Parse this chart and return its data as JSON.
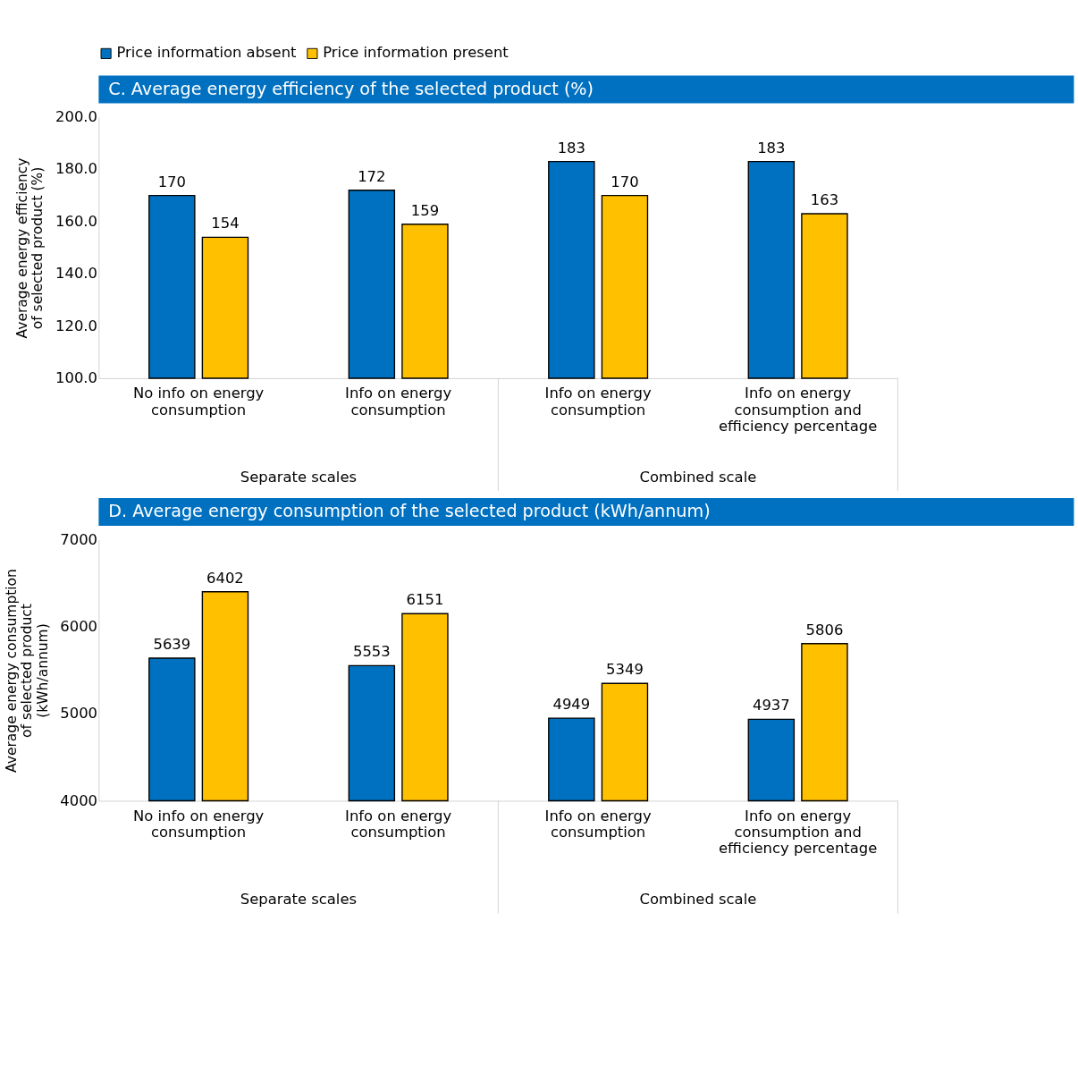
{
  "chart_data": [
    {
      "type": "bar",
      "title": "C. Average energy efficiency of the selected product (%)",
      "ylabel": "Average energy efficiency of selected product (%)",
      "categories": [
        "No info on energy consumption",
        "Info on energy consumption",
        "Info on energy consumption",
        "Info on energy consumption and efficiency percentage"
      ],
      "series": [
        {
          "name": "Price information absent",
          "color": "#0070c0",
          "values": [
            170,
            172,
            183,
            183
          ]
        },
        {
          "name": "Price information present",
          "color": "#ffc000",
          "values": [
            154,
            159,
            170,
            163
          ]
        }
      ],
      "ylim": [
        100,
        200
      ],
      "yticks": [
        {
          "value": 100,
          "label": "100.0"
        },
        {
          "value": 120,
          "label": "120.0"
        },
        {
          "value": 140,
          "label": "140.0"
        },
        {
          "value": 160,
          "label": "160.0"
        },
        {
          "value": 180,
          "label": "180.0"
        },
        {
          "value": 200,
          "label": "200.0"
        }
      ],
      "data_labels": true,
      "legend": "top",
      "grid": false,
      "annotations": [
        "Separate scales",
        "Combined scale"
      ]
    },
    {
      "type": "bar",
      "title": "D. Average energy consumption of the selected product (kWh/annum)",
      "ylabel": "Average energy consumption of selected product (kWh/annum)",
      "categories": [
        "No info on energy consumption",
        "Info on energy consumption",
        "Info on energy consumption",
        "Info on energy consumption and efficiency percentage"
      ],
      "series": [
        {
          "name": "Price information absent",
          "color": "#0070c0",
          "values": [
            5639,
            5553,
            4949,
            4937
          ]
        },
        {
          "name": "Price information present",
          "color": "#ffc000",
          "values": [
            6402,
            6151,
            5349,
            5806
          ]
        }
      ],
      "ylim": [
        4000,
        7000
      ],
      "yticks": [
        4000,
        5000,
        6000,
        7000
      ],
      "data_labels": true,
      "legend": "top",
      "grid": false,
      "annotations": [
        "Separate scales",
        "Combined scale"
      ]
    }
  ]
}
